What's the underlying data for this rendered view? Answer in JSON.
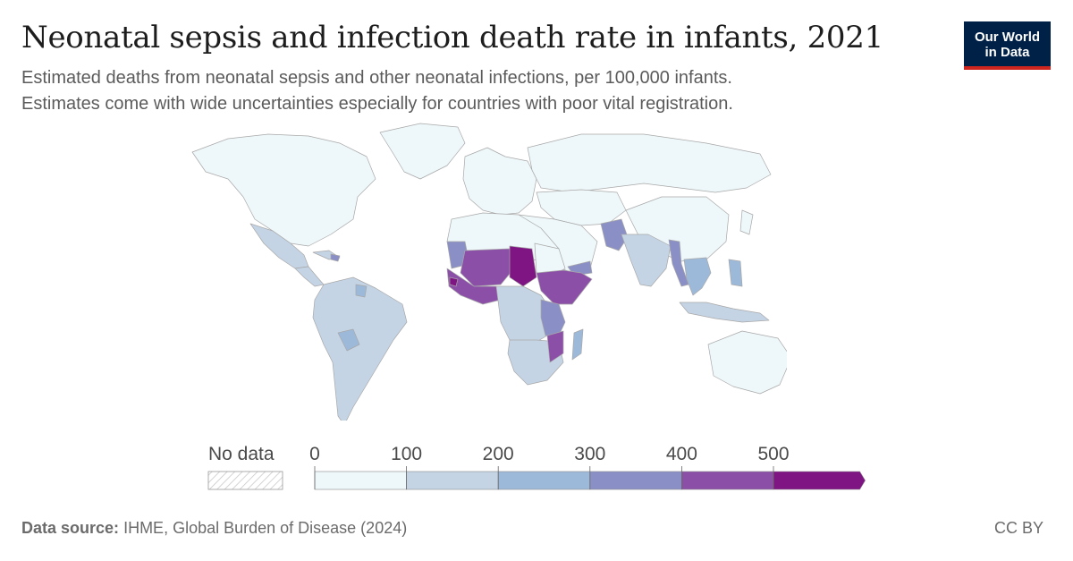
{
  "header": {
    "title": "Neonatal sepsis and infection death rate in infants, 2021",
    "subtitle_line1": "Estimated deaths from neonatal sepsis and other neonatal infections, per 100,000 infants.",
    "subtitle_line2": "Estimates come with wide uncertainties especially for countries with poor vital registration."
  },
  "logo": {
    "line1": "Our World",
    "line2": "in Data",
    "bg": "#002147",
    "accent": "#ce261e"
  },
  "legend": {
    "no_data_label": "No data",
    "ticks": [
      "0",
      "100",
      "200",
      "300",
      "400",
      "500"
    ],
    "bins": [
      {
        "from": 0,
        "to": 100,
        "color": "#eef7f9"
      },
      {
        "from": 100,
        "to": 200,
        "color": "#c4d4e5"
      },
      {
        "from": 200,
        "to": 300,
        "color": "#9db9d9"
      },
      {
        "from": 300,
        "to": 400,
        "color": "#8a8fc6"
      },
      {
        "from": 400,
        "to": 500,
        "color": "#8b4fa8"
      },
      {
        "from": 500,
        "to": null,
        "color": "#7f1583"
      }
    ]
  },
  "footer": {
    "source_label": "Data source:",
    "source_text": "IHME, Global Burden of Disease (2024)",
    "license": "CC BY"
  }
}
